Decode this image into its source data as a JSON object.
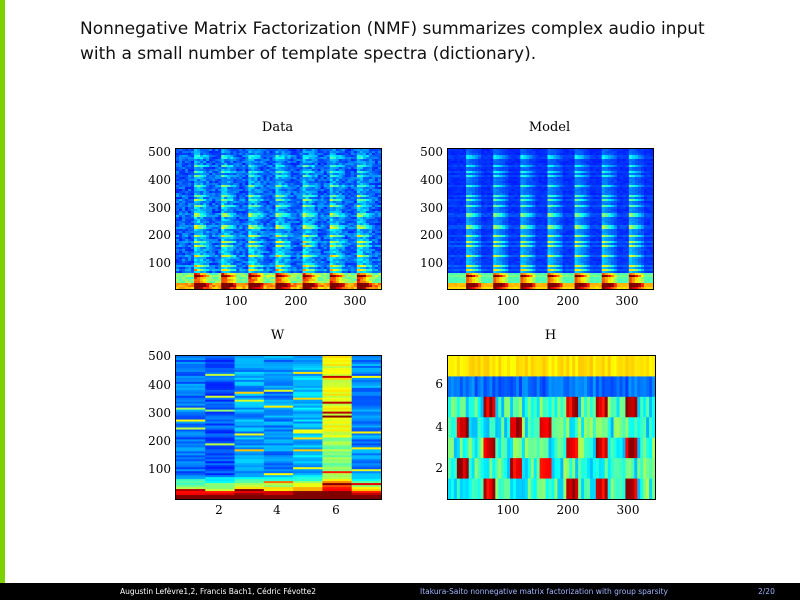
{
  "colors": {
    "accent_bar": "#7bd000",
    "footer_bg": "#000000",
    "footer_text": "#ffffff",
    "footer_title": "#9fb4ff"
  },
  "slide": {
    "title_line1": "Nonnegative Matrix Factorization (NMF) summarizes complex audio input",
    "title_line2": "with a small number of template spectra (dictionary)."
  },
  "plots": {
    "data": {
      "title": "Data",
      "yticks": [
        "500",
        "400",
        "300",
        "200",
        "100"
      ],
      "xticks": [
        "100",
        "200",
        "300"
      ]
    },
    "model": {
      "title": "Model",
      "yticks": [
        "500",
        "400",
        "300",
        "200",
        "100"
      ],
      "xticks": [
        "100",
        "200",
        "300"
      ]
    },
    "w": {
      "title": "W",
      "yticks": [
        "500",
        "400",
        "300",
        "200",
        "100"
      ],
      "xticks": [
        "2",
        "4",
        "6"
      ]
    },
    "h": {
      "title": "H",
      "yticks": [
        "6",
        "4",
        "2"
      ],
      "xticks": [
        "100",
        "200",
        "300"
      ]
    }
  },
  "footer": {
    "authors": "Augustin Lefèvre1,2, Francis Bach1, Cédric Févotte2",
    "talk_title": "Itakura-Saito nonnegative matrix factorization with group sparsity",
    "page": "2/20"
  }
}
